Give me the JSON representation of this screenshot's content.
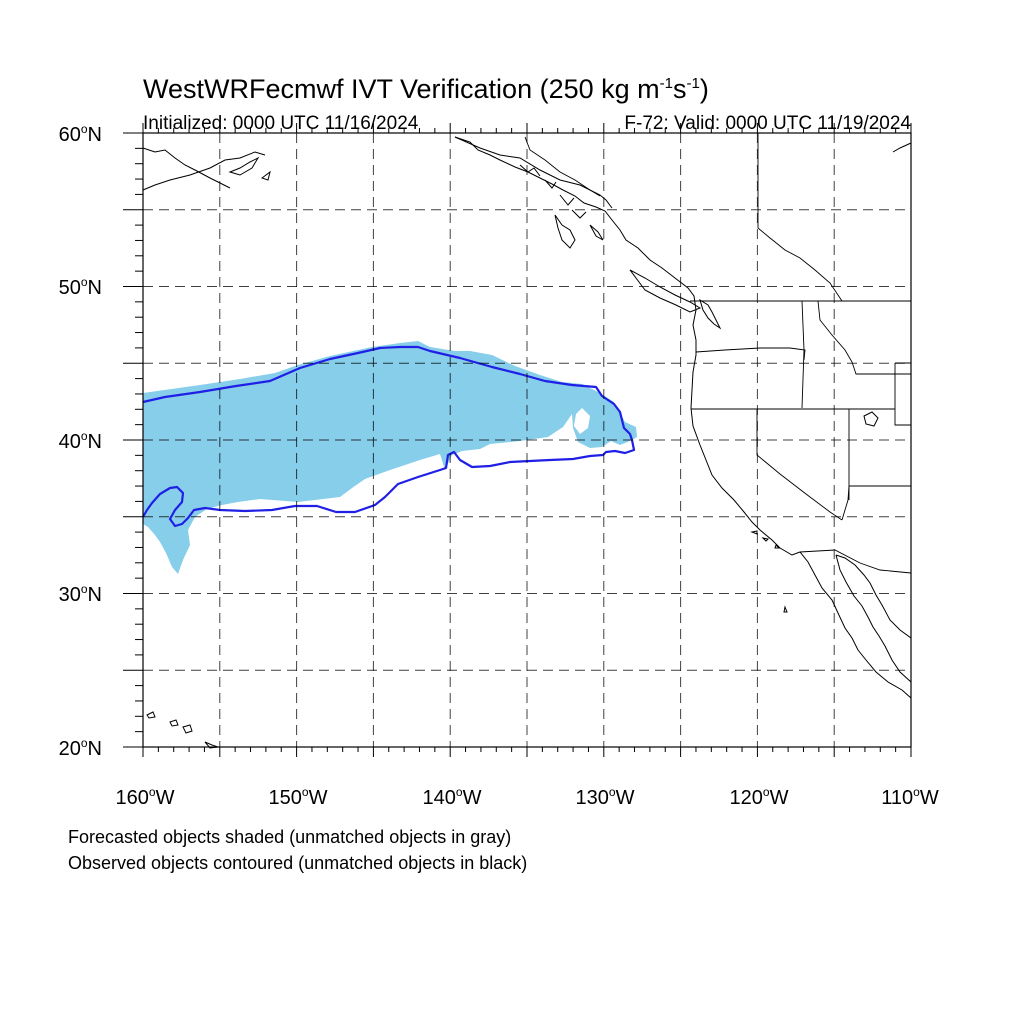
{
  "title": {
    "main": "WestWRFecmwf IVT Verification (250 kg m",
    "sup1": "-1",
    "mid": "s",
    "sup2": "-1",
    "end": ")"
  },
  "initialized_label": "Initialized: 0000 UTC 11/16/2024",
  "valid_label": "F-72: Valid: 0000 UTC 11/19/2024",
  "map": {
    "lon_range": [
      -160,
      -110
    ],
    "lat_range": [
      20,
      60
    ],
    "lat_labels": [
      "20",
      "30",
      "40",
      "50",
      "60"
    ],
    "lat_suffix": "N",
    "lon_labels": [
      "160",
      "150",
      "140",
      "130",
      "120",
      "110"
    ],
    "lon_suffix": "W",
    "degree_symbol": "o",
    "forecast_fill_color": "#87ceeb",
    "observed_contour_color": "#1f1fe6",
    "gridlines": true
  },
  "notes": {
    "line1": "Forecasted objects shaded (unmatched objects in gray)",
    "line2": "Observed objects contoured (unmatched objects in black)"
  }
}
